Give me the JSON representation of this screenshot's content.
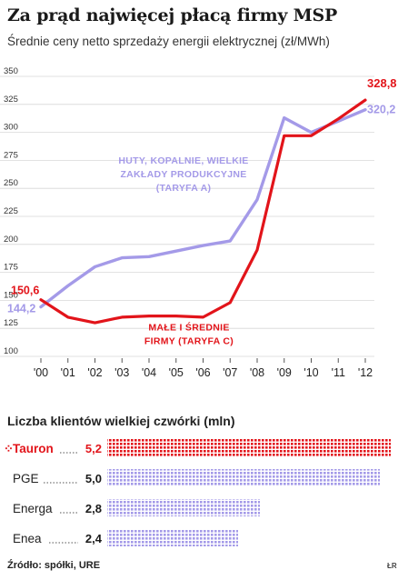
{
  "header": {
    "title": "Za prąd najwięcej płacą firmy MSP",
    "subtitle": "Średnie ceny netto sprzedaży energii elektrycznej (zł/MWh)"
  },
  "chart_data": [
    {
      "type": "line",
      "x": [
        "'00",
        "'01",
        "'02",
        "'03",
        "'04",
        "'05",
        "'06",
        "'07",
        "'08",
        "'09",
        "'10",
        "'11",
        "'12"
      ],
      "ylim": [
        100,
        350
      ],
      "yticks": [
        100,
        125,
        150,
        175,
        200,
        225,
        250,
        275,
        300,
        325,
        350
      ],
      "grid": true,
      "series": [
        {
          "name": "HUTY, KOPALNIE, WIELKIE ZAKŁADY PRODUKCYJNE (TARYFA A)",
          "label_lines": [
            "HUTY, KOPALNIE, WIELKIE",
            "ZAKŁADY PRODUKCYJNE",
            "(TARYFA A)"
          ],
          "color": "#a49ae8",
          "values": [
            144.2,
            163,
            180,
            188,
            189,
            194,
            199,
            203,
            240,
            313,
            300,
            310,
            320.2
          ],
          "start_label": "144,2",
          "end_label": "320,2"
        },
        {
          "name": "MAŁE I ŚREDNIE FIRMY (TARYFA C)",
          "label_lines": [
            "MAŁE I ŚREDNIE",
            "FIRMY (TARYFA C)"
          ],
          "color": "#e2141a",
          "values": [
            150.6,
            135,
            130,
            135,
            136,
            136,
            135,
            148,
            195,
            297,
            297,
            312,
            328.8
          ],
          "start_label": "150,6",
          "end_label": "328,8"
        }
      ]
    },
    {
      "type": "bar",
      "title": "Liczba klientów wielkiej czwórki (mln)",
      "categories": [
        "Tauron",
        "PGE",
        "Energa",
        "Enea"
      ],
      "values": [
        5.2,
        5.0,
        2.8,
        2.4
      ],
      "value_labels": [
        "5,2",
        "5,0",
        "2,8",
        "2,4"
      ],
      "highlight": "Tauron",
      "colors": {
        "highlight": "#e2141a",
        "other": "#a49ae8"
      }
    }
  ],
  "footer": {
    "source": "Źródło: spółki, URE",
    "credit": "ŁR"
  }
}
